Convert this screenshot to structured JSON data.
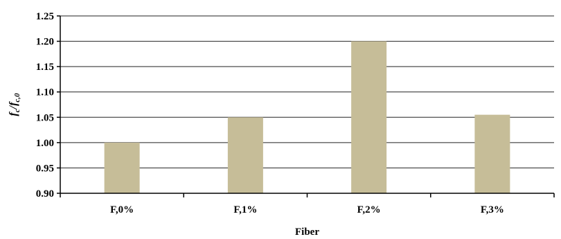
{
  "chart_data": {
    "type": "bar",
    "categories": [
      "F,0%",
      "F,1%",
      "F,2%",
      "F,3%"
    ],
    "values": [
      1.0,
      1.05,
      1.2,
      1.055
    ],
    "xlabel": "Fiber",
    "ylabel": {
      "base": "f",
      "sub1": "c",
      "mid": "/f",
      "sub2": "c,0"
    },
    "ylim": [
      0.9,
      1.25
    ],
    "yticks": [
      "0.90",
      "0.95",
      "1.00",
      "1.05",
      "1.10",
      "1.15",
      "1.20",
      "1.25"
    ],
    "grid": true,
    "legend": "none",
    "bar_color": "#c6bd98",
    "grid_color": "#222222"
  }
}
